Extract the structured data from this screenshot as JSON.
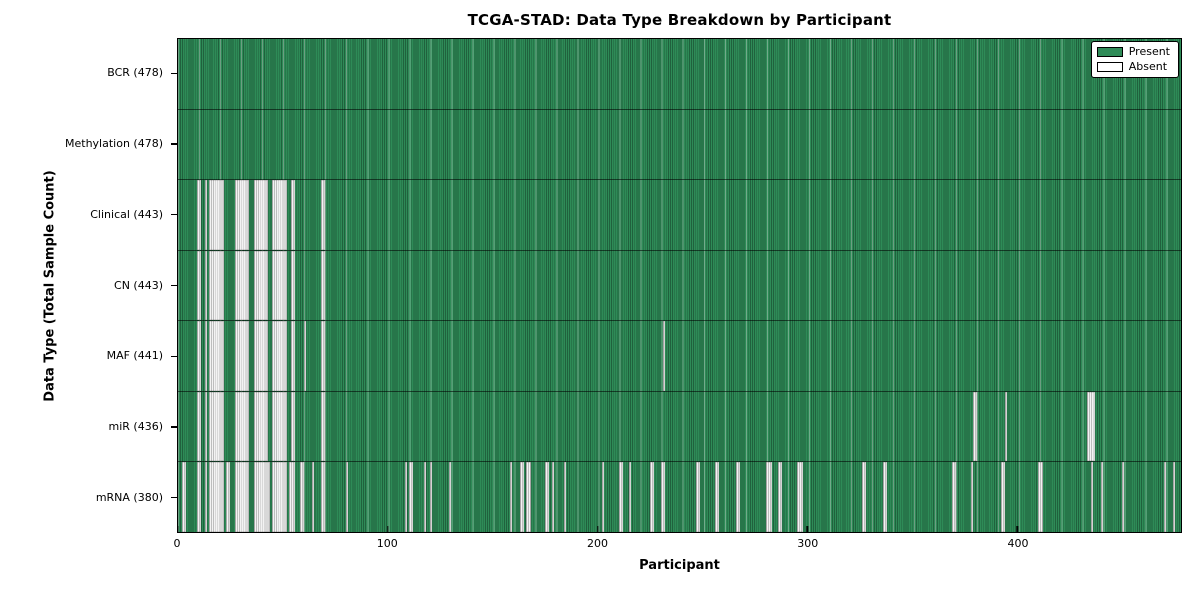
{
  "figure": {
    "title": "TCGA-STAD: Data Type Breakdown by Participant",
    "x_axis_label": "Participant",
    "y_axis_label": "Data Type (Total Sample Count)"
  },
  "legend": {
    "present": "Present",
    "absent": "Absent"
  },
  "colors": {
    "present_fill": "#2e8b57",
    "present_cell_edge": "rgba(0,0,0,0.30)",
    "grid_line": "rgba(235,255,244,0.38)",
    "absent_fill": "#f3f3f3",
    "absent_cell_edge": "#bdbdbd",
    "axis_color": "#000000",
    "background": "#ffffff"
  },
  "chart_data": {
    "type": "heatmap",
    "title": "TCGA-STAD: Data Type Breakdown by Participant",
    "xlabel": "Participant",
    "ylabel": "Data Type (Total Sample Count)",
    "legend_entries": [
      "Present",
      "Absent"
    ],
    "x_ticks": [
      0,
      100,
      200,
      300,
      400
    ],
    "x_range": [
      0,
      478
    ],
    "total_participants": 478,
    "cell_states": {
      "present": "green",
      "absent": "white"
    },
    "rows": [
      {
        "key": "bcr",
        "label": "BCR (478)",
        "data_type": "BCR",
        "present_count": 478,
        "absent_count": 0,
        "absent_ranges": []
      },
      {
        "key": "methylation",
        "label": "Methylation (478)",
        "data_type": "Methylation",
        "present_count": 478,
        "absent_count": 0,
        "absent_ranges": []
      },
      {
        "key": "clinical",
        "label": "Clinical (443)",
        "data_type": "Clinical",
        "present_count": 443,
        "absent_count": 35,
        "absent_ranges": [
          [
            9,
            10
          ],
          [
            13,
            13
          ],
          [
            15,
            21
          ],
          [
            27,
            33
          ],
          [
            36,
            42
          ],
          [
            45,
            51
          ],
          [
            54,
            55
          ],
          [
            68,
            69
          ]
        ]
      },
      {
        "key": "cn",
        "label": "CN (443)",
        "data_type": "CN",
        "present_count": 443,
        "absent_count": 35,
        "absent_ranges": [
          [
            9,
            10
          ],
          [
            13,
            13
          ],
          [
            15,
            21
          ],
          [
            27,
            33
          ],
          [
            36,
            42
          ],
          [
            45,
            51
          ],
          [
            54,
            55
          ],
          [
            68,
            69
          ]
        ]
      },
      {
        "key": "maf",
        "label": "MAF (441)",
        "data_type": "MAF",
        "present_count": 441,
        "absent_count": 37,
        "absent_ranges": [
          [
            9,
            10
          ],
          [
            13,
            13
          ],
          [
            15,
            21
          ],
          [
            27,
            33
          ],
          [
            36,
            42
          ],
          [
            45,
            51
          ],
          [
            54,
            55
          ],
          [
            60,
            60
          ],
          [
            68,
            69
          ],
          [
            231,
            231
          ]
        ]
      },
      {
        "key": "mir",
        "label": "miR (436)",
        "data_type": "miR",
        "present_count": 436,
        "absent_count": 42,
        "absent_ranges": [
          [
            9,
            10
          ],
          [
            13,
            13
          ],
          [
            15,
            21
          ],
          [
            27,
            33
          ],
          [
            36,
            42
          ],
          [
            45,
            51
          ],
          [
            54,
            55
          ],
          [
            68,
            69
          ],
          [
            379,
            380
          ],
          [
            394,
            394
          ],
          [
            433,
            436
          ]
        ]
      },
      {
        "key": "mrna",
        "label": "mRNA (380)",
        "data_type": "mRNA",
        "present_count": 380,
        "absent_count": 98,
        "absent_ranges": [
          [
            2,
            3
          ],
          [
            9,
            10
          ],
          [
            13,
            13
          ],
          [
            15,
            21
          ],
          [
            23,
            24
          ],
          [
            27,
            33
          ],
          [
            36,
            43
          ],
          [
            45,
            51
          ],
          [
            53,
            55
          ],
          [
            58,
            59
          ],
          [
            64,
            64
          ],
          [
            68,
            69
          ],
          [
            80,
            80
          ],
          [
            108,
            108
          ],
          [
            110,
            111
          ],
          [
            117,
            117
          ],
          [
            120,
            120
          ],
          [
            129,
            129
          ],
          [
            158,
            158
          ],
          [
            163,
            164
          ],
          [
            166,
            167
          ],
          [
            175,
            176
          ],
          [
            178,
            178
          ],
          [
            184,
            184
          ],
          [
            202,
            202
          ],
          [
            210,
            211
          ],
          [
            215,
            215
          ],
          [
            225,
            226
          ],
          [
            230,
            231
          ],
          [
            247,
            248
          ],
          [
            256,
            257
          ],
          [
            266,
            267
          ],
          [
            280,
            282
          ],
          [
            286,
            287
          ],
          [
            295,
            297
          ],
          [
            326,
            327
          ],
          [
            336,
            337
          ],
          [
            369,
            370
          ],
          [
            378,
            378
          ],
          [
            392,
            393
          ],
          [
            410,
            411
          ],
          [
            435,
            435
          ],
          [
            440,
            440
          ],
          [
            450,
            450
          ],
          [
            470,
            470
          ],
          [
            474,
            474
          ]
        ]
      }
    ]
  }
}
